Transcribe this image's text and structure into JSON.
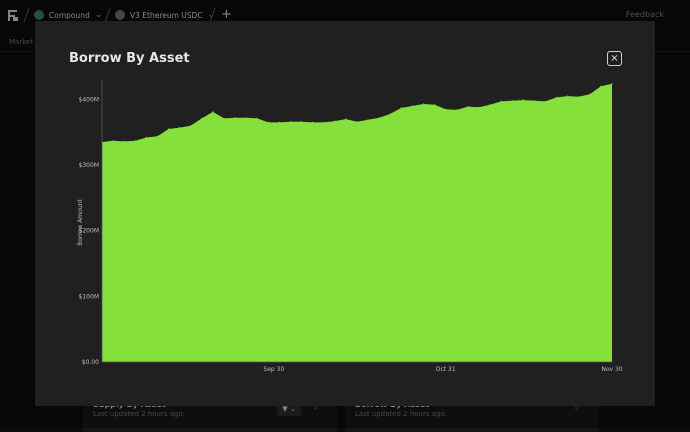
{
  "topbar": {
    "project_name": "Compound",
    "market_name": "V3 Ethereum USDC",
    "feedback_label": "Feedback"
  },
  "subbar": {
    "label": "Market t"
  },
  "cards": [
    {
      "title": "Supply By Asset",
      "subtitle": "Last updated 2 hours ago."
    },
    {
      "title": "Borrow By Asset",
      "subtitle": "Last updated 2 hours ago."
    }
  ],
  "modal": {
    "title": "Borrow By Asset",
    "close_label": "×"
  },
  "colors": {
    "fill": "#86e03c",
    "background": "#202020"
  },
  "chart_data": {
    "type": "area",
    "title": "Borrow By Asset",
    "ylabel": "Borrow Amount",
    "xlabel": "",
    "ylim": [
      0,
      425
    ],
    "y_unit": "M",
    "yticks": [
      {
        "value": 0,
        "label": "$0.00"
      },
      {
        "value": 100,
        "label": "$100M"
      },
      {
        "value": 200,
        "label": "$200M"
      },
      {
        "value": 300,
        "label": "$300M"
      },
      {
        "value": 400,
        "label": "$400M"
      }
    ],
    "xticks": [
      {
        "value": "2023-09-30",
        "label": "Sep 30"
      },
      {
        "value": "2023-10-31",
        "label": "Oct 31"
      },
      {
        "value": "2023-11-30",
        "label": "Nov 30"
      }
    ],
    "x": [
      "2023-08-30",
      "2023-09-01",
      "2023-09-03",
      "2023-09-05",
      "2023-09-07",
      "2023-09-09",
      "2023-09-11",
      "2023-09-13",
      "2023-09-15",
      "2023-09-17",
      "2023-09-19",
      "2023-09-21",
      "2023-09-23",
      "2023-09-25",
      "2023-09-27",
      "2023-09-29",
      "2023-10-01",
      "2023-10-03",
      "2023-10-05",
      "2023-10-07",
      "2023-10-09",
      "2023-10-11",
      "2023-10-13",
      "2023-10-15",
      "2023-10-17",
      "2023-10-19",
      "2023-10-21",
      "2023-10-23",
      "2023-10-25",
      "2023-10-27",
      "2023-10-29",
      "2023-10-31",
      "2023-11-02",
      "2023-11-04",
      "2023-11-06",
      "2023-11-08",
      "2023-11-10",
      "2023-11-12",
      "2023-11-14",
      "2023-11-16",
      "2023-11-18",
      "2023-11-20",
      "2023-11-22",
      "2023-11-24",
      "2023-11-26",
      "2023-11-28",
      "2023-11-30"
    ],
    "series": [
      {
        "values": [
          335,
          337,
          336,
          337,
          342,
          344,
          355,
          357,
          360,
          371,
          381,
          371,
          372,
          372,
          371,
          365,
          365,
          366,
          366,
          365,
          365,
          367,
          370,
          366,
          369,
          372,
          378,
          387,
          390,
          393,
          392,
          385,
          384,
          389,
          388,
          392,
          397,
          398,
          399,
          398,
          397,
          403,
          405,
          404,
          408,
          420,
          424
        ]
      }
    ]
  }
}
